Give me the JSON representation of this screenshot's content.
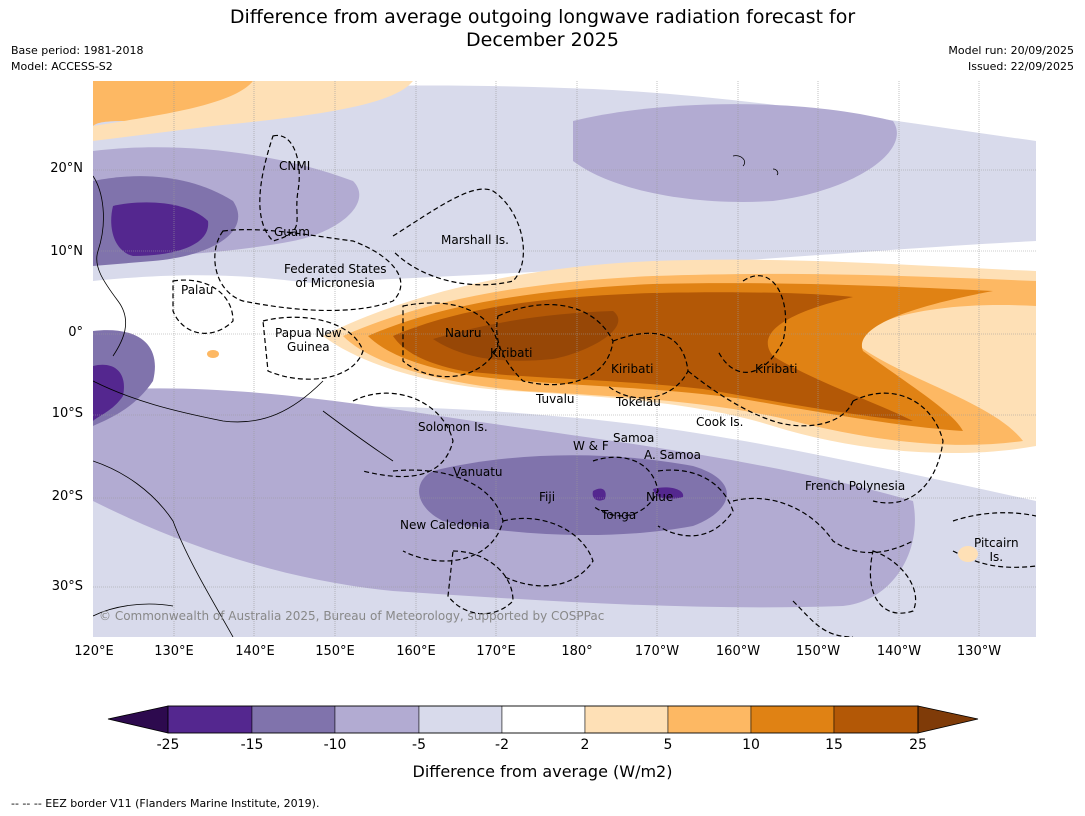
{
  "title": "Difference from average outgoing longwave radiation forecast for December 2025",
  "title_line1": "Difference from average outgoing longwave radiation forecast for",
  "title_line2": "December 2025",
  "meta": {
    "base_period": "Base period: 1981-2018",
    "model": "Model: ACCESS-S2",
    "model_run": "Model run: 20/09/2025",
    "issued": "Issued: 22/09/2025"
  },
  "map": {
    "lat_labels": [
      "20°N",
      "10°N",
      "0°",
      "10°S",
      "20°S",
      "30°S"
    ],
    "lon_labels": [
      "120°E",
      "130°E",
      "140°E",
      "150°E",
      "160°E",
      "170°E",
      "180°",
      "170°W",
      "160°W",
      "150°W",
      "140°W",
      "130°W"
    ],
    "places": {
      "cnmi": "CNMI",
      "guam": "Guam",
      "marshall": "Marshall Is.",
      "fsm1": "Federated States",
      "fsm2": "of Micronesia",
      "palau": "Palau",
      "png1": "Papua New",
      "png2": "Guinea",
      "nauru": "Nauru",
      "kiribati_w": "Kiribati",
      "kiribati_c": "Kiribati",
      "kiribati_e": "Kiribati",
      "tuvalu": "Tuvalu",
      "tokelau": "Tokelau",
      "cook": "Cook Is.",
      "solomon": "Solomon Is.",
      "samoa": "Samoa",
      "wf": "W & F",
      "asamoa": "A. Samoa",
      "vanuatu": "Vanuatu",
      "fiji": "Fiji",
      "niue": "Niue",
      "tonga": "Tonga",
      "french_poly": "French Polynesia",
      "new_caledonia": "New Caledonia",
      "pitcairn1": "Pitcairn",
      "pitcairn2": "Is."
    },
    "copyright": "© Commonwealth of Australia 2025, Bureau of Meteorology, supported by COSPPac"
  },
  "colorbar": {
    "ticks": [
      "-25",
      "-15",
      "-10",
      "-5",
      "-2",
      "2",
      "5",
      "10",
      "15",
      "25"
    ],
    "colors": {
      "lt_minus25": "#2d0a4e",
      "m25_m15": "#54278f",
      "m15_m10": "#8073ac",
      "m10_m5": "#b2abd2",
      "m5_m2": "#d8daeb",
      "m2_p2": "#ffffff",
      "p2_p5": "#fee0b6",
      "p5_p10": "#fdb863",
      "p10_p15": "#e08214",
      "p15_p25": "#b35806",
      "gt_p25": "#7f3b08"
    },
    "label": "Difference from average (W/m2)"
  },
  "footer": "--  --  -- EEZ border V11 (Flanders Marine Institute, 2019)."
}
